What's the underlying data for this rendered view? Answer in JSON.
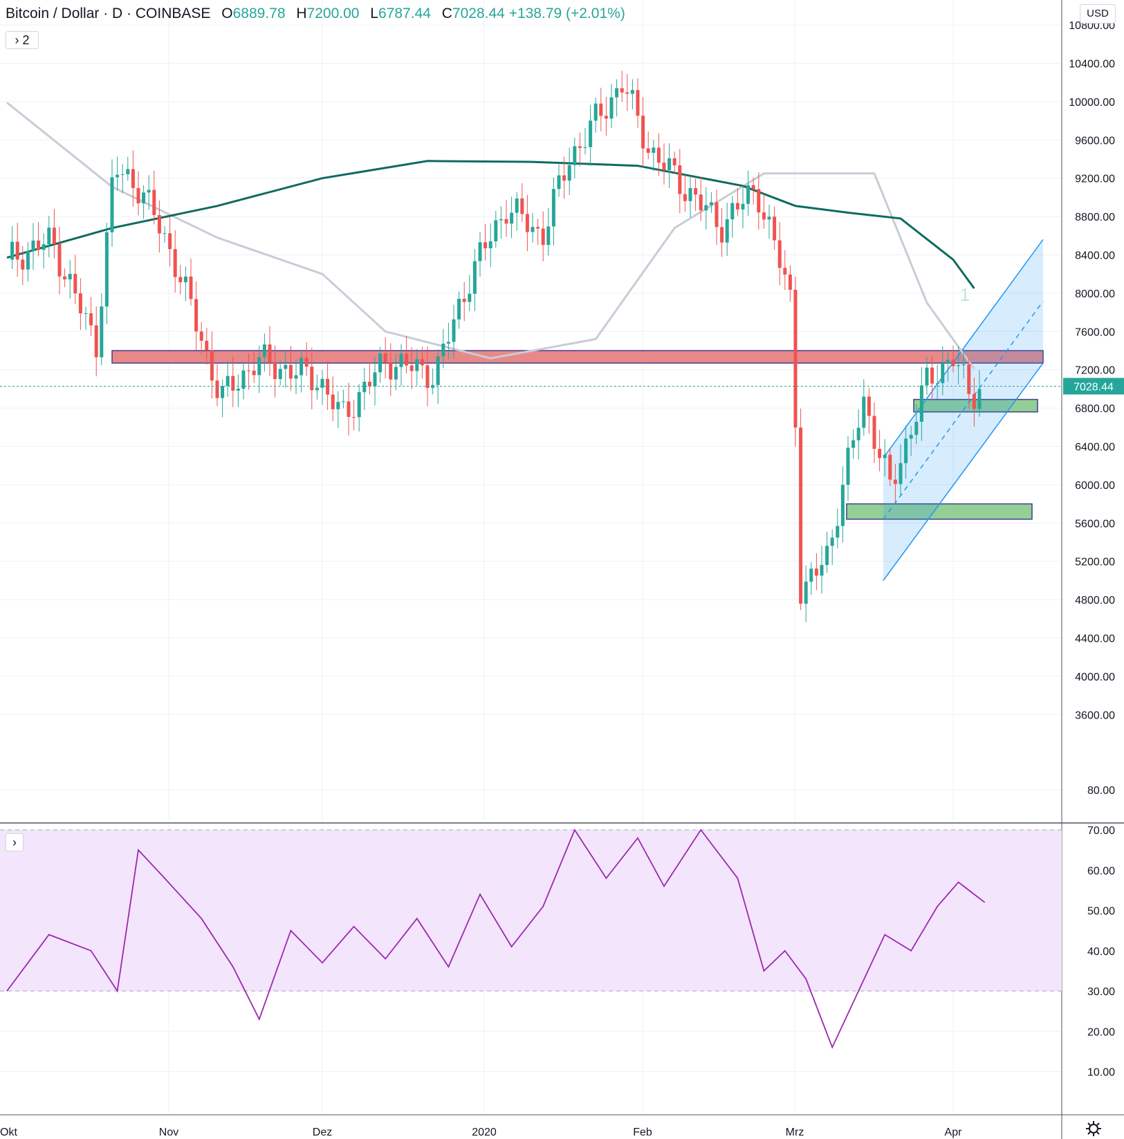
{
  "header": {
    "symbol": "Bitcoin / Dollar · D · COINBASE",
    "open_label": "O",
    "open": "6889.78",
    "high_label": "H",
    "high": "7200.00",
    "low_label": "L",
    "low": "6787.44",
    "close_label": "C",
    "close": "7028.44",
    "change": "+138.79 (+2.01%)",
    "indicator_count": "2"
  },
  "currency": "USD",
  "chart_data": {
    "type": "line",
    "price_axis": {
      "ticks": [
        "3600.00",
        "4000.00",
        "4400.00",
        "4800.00",
        "5200.00",
        "5600.00",
        "6000.00",
        "6400.00",
        "6800.00",
        "7200.00",
        "7600.00",
        "8000.00",
        "8400.00",
        "8800.00",
        "9200.00",
        "9600.00",
        "10000.00",
        "10400.00",
        "10800.00"
      ],
      "range": [
        3300,
        11100
      ],
      "last_price_label": "7028.44",
      "last_price": 7028.44
    },
    "rsi_axis": {
      "ticks": [
        "10.00",
        "20.00",
        "30.00",
        "40.00",
        "50.00",
        "60.00",
        "70.00",
        "80.00"
      ],
      "range": [
        10,
        80
      ],
      "band": [
        30,
        70
      ]
    },
    "time_axis": [
      "Okt",
      "Nov",
      "Dez",
      "2020",
      "Feb",
      "Mrz",
      "Apr"
    ],
    "annotation": "1",
    "colors": {
      "up": "#26a69a",
      "down": "#ef5350",
      "ma200": "#0d6b5e",
      "ma50": "#c9ccd6",
      "rsi": "#9c27b0",
      "channel": "#2196f3",
      "resistance_zone": "#e57373",
      "support_zone": "#81c784"
    },
    "series": [
      {
        "name": "ma200",
        "x": [
          0,
          20,
          40,
          60,
          80,
          100,
          120,
          140,
          150,
          160,
          170,
          180,
          184
        ],
        "values": [
          8370,
          8680,
          8910,
          9200,
          9380,
          9370,
          9330,
          9120,
          8910,
          8840,
          8780,
          8350,
          8050
        ]
      },
      {
        "name": "ma50",
        "x": [
          0,
          20,
          40,
          60,
          72,
          92,
          112,
          127,
          144,
          165,
          175,
          184
        ],
        "values": [
          9990,
          9110,
          8580,
          8200,
          7600,
          7320,
          7520,
          8680,
          9250,
          9250,
          7900,
          7210
        ]
      },
      {
        "name": "rsi",
        "x": [
          0,
          8,
          16,
          21,
          25,
          30,
          37,
          43,
          48,
          54,
          60,
          66,
          72,
          78,
          84,
          90,
          96,
          102,
          108,
          114,
          120,
          125,
          132,
          139,
          144,
          148,
          152,
          157,
          162,
          167,
          172,
          177,
          181,
          186
        ],
        "values": [
          30,
          44,
          40,
          30,
          65,
          58,
          48,
          36,
          23,
          45,
          37,
          46,
          38,
          48,
          36,
          54,
          41,
          51,
          70,
          58,
          68,
          56,
          70,
          58,
          35,
          40,
          33,
          16,
          30,
          44,
          40,
          51,
          57,
          52
        ]
      }
    ]
  }
}
